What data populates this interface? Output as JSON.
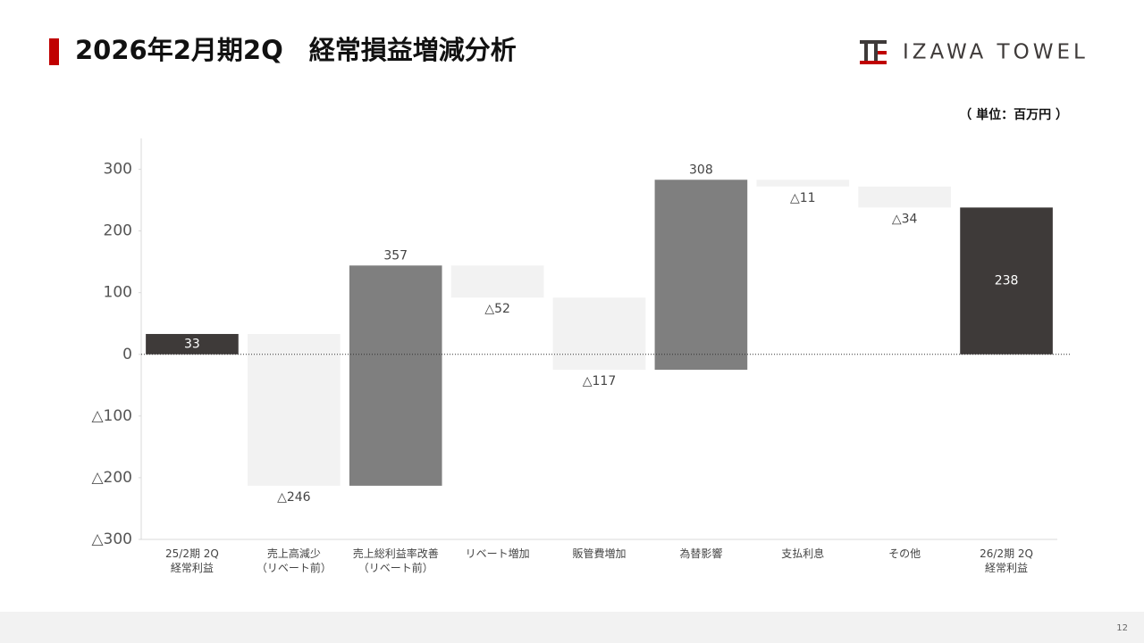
{
  "header": {
    "title": "2026年2月期2Q　経常損益増減分析",
    "logo": "IZAWA TOWEL"
  },
  "unit_note": "（ 単位：百万円 ）",
  "page_number": "12",
  "chart_data": {
    "type": "waterfall",
    "categories": [
      "25/2期 2Q\n経常利益",
      "売上高減少\n（リベート前）",
      "売上総利益率改善\n（リベート前）",
      "リベート増加",
      "販管費増加",
      "為替影響",
      "支払利息",
      "その他",
      "26/2期 2Q\n経常利益"
    ],
    "values": [
      33,
      -246,
      357,
      -52,
      -117,
      308,
      -11,
      -34,
      238
    ],
    "value_labels": [
      "33",
      "△246",
      "357",
      "△52",
      "△117",
      "308",
      "△11",
      "△34",
      "238"
    ],
    "total_color": "#3e3a39",
    "increase_color": "#7f7f7f",
    "decrease_color": "#f2f2f2",
    "ylim": [
      -300,
      350
    ],
    "yticks": [
      {
        "value": -300,
        "label": "△300"
      },
      {
        "value": -200,
        "label": "△200"
      },
      {
        "value": -100,
        "label": "△100"
      },
      0,
      100,
      200,
      300
    ]
  }
}
